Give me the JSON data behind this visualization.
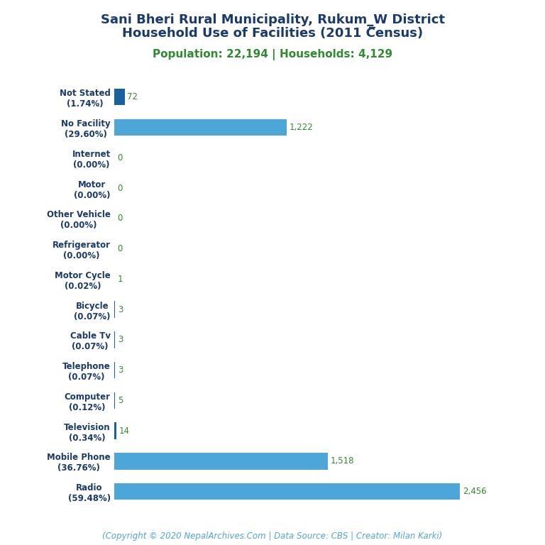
{
  "title_line1": "Sani Bheri Rural Municipality, Rukum_W District",
  "title_line2": "Household Use of Facilities (2011 C̅ensus)",
  "subtitle": "Population: 22,194 | Households: 4,129",
  "footer": "(Copyright © 2020 NepalArchives.Com | Data Source: CBS | Creator: Milan Karki)",
  "categories": [
    "Not Stated\n(1.74%)",
    "No Facility\n(29.60%)",
    "Internet\n(0.00%)",
    "Motor\n(0.00%)",
    "Other Vehicle\n(0.00%)",
    "Refrigerator\n(0.00%)",
    "Motor Cycle\n(0.02%)",
    "Bicycle\n(0.07%)",
    "Cable Tv\n(0.07%)",
    "Telephone\n(0.07%)",
    "Computer\n(0.12%)",
    "Television\n(0.34%)",
    "Mobile Phone\n(36.76%)",
    "Radio\n(59.48%)"
  ],
  "values": [
    72,
    1222,
    0,
    0,
    0,
    0,
    1,
    3,
    3,
    3,
    5,
    14,
    1518,
    2456
  ],
  "value_labels": [
    "72",
    "1,222",
    "0",
    "0",
    "0",
    "0",
    "1",
    "3",
    "3",
    "3",
    "5",
    "14",
    "1,518",
    "2,456"
  ],
  "bar_color_dark": "#1a5f9e",
  "bar_color_light": "#4da6d8",
  "title_color": "#1a3a6b",
  "subtitle_color": "#2e8b2e",
  "footer_color": "#4da6d8",
  "value_color": "#2e8b2e",
  "label_color": "#1a3a6b",
  "background_color": "#ffffff",
  "title_fontsize": 13,
  "subtitle_fontsize": 11,
  "footer_fontsize": 8.5,
  "bar_label_fontsize": 8.5,
  "value_label_fontsize": 8.5
}
